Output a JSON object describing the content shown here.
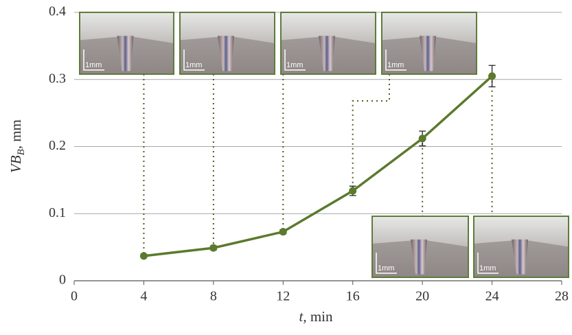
{
  "chart_data": {
    "type": "line",
    "x": [
      4,
      8,
      12,
      16,
      20,
      24
    ],
    "series": [
      {
        "name": "VB",
        "color": "#5b7a2e",
        "values": [
          0.037,
          0.049,
          0.073,
          0.134,
          0.212,
          0.305
        ],
        "errors": [
          0.002,
          0.003,
          0.003,
          0.007,
          0.011,
          0.016
        ]
      }
    ],
    "xlim": [
      0,
      28
    ],
    "xticks": [
      0,
      4,
      8,
      12,
      16,
      20,
      24,
      28
    ],
    "ylim": [
      0,
      0.4
    ],
    "yticks": [
      0,
      0.1,
      0.2,
      0.3,
      0.4
    ],
    "grid": true,
    "xlabel": {
      "var": "t",
      "unit": ", min"
    },
    "ylabel": {
      "var": "VB",
      "sub": "B",
      "unit": ", mm"
    },
    "insets": [
      {
        "scale_label": "1mm"
      },
      {
        "scale_label": "1mm"
      },
      {
        "scale_label": "1mm"
      },
      {
        "scale_label": "1mm"
      },
      {
        "scale_label": "1mm"
      },
      {
        "scale_label": "1mm"
      }
    ]
  }
}
